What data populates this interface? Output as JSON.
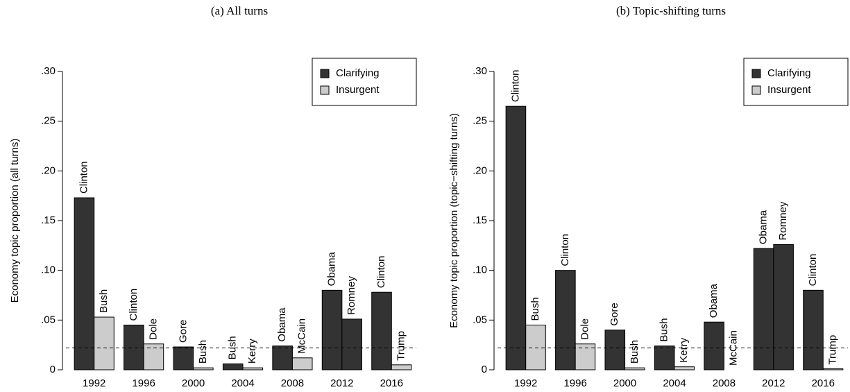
{
  "chart_data": [
    {
      "type": "bar",
      "title": "(a) All turns",
      "ylabel": "Economy topic proportion (all turns)",
      "categories": [
        "1992",
        "1996",
        "2000",
        "2004",
        "2008",
        "2012",
        "2016"
      ],
      "series": [
        {
          "labels": [
            "Clinton",
            "Clinton",
            "Gore",
            "Bush",
            "Obama",
            "Obama",
            "Clinton"
          ],
          "values": [
            0.173,
            0.045,
            0.023,
            0.006,
            0.024,
            0.08,
            0.078
          ],
          "colors": [
            "#333333",
            "#333333",
            "#333333",
            "#333333",
            "#333333",
            "#333333",
            "#333333"
          ]
        },
        {
          "labels": [
            "Bush",
            "Dole",
            "Bush",
            "Kerry",
            "McCain",
            "Romney",
            "Trump"
          ],
          "values": [
            0.053,
            0.026,
            0.002,
            0.002,
            0.012,
            0.051,
            0.005
          ],
          "colors": [
            "#cccccc",
            "#cccccc",
            "#cccccc",
            "#cccccc",
            "#cccccc",
            "#333333",
            "#cccccc"
          ]
        }
      ],
      "ylim": [
        0,
        0.3
      ],
      "yticks": [
        0,
        {
          "value": 0.05,
          "label": ".05"
        },
        {
          "value": 0.1,
          "label": ".10"
        },
        {
          "value": 0.15,
          "label": ".15"
        },
        {
          "value": 0.2,
          "label": ".20"
        },
        {
          "value": 0.25,
          "label": ".25"
        },
        {
          "value": 0.3,
          "label": ".30"
        }
      ],
      "reference_line": 0.022,
      "legend": {
        "position": "top-right",
        "entries": [
          {
            "name": "Clarifying",
            "color": "#333333"
          },
          {
            "name": "Insurgent",
            "color": "#cccccc"
          }
        ]
      }
    },
    {
      "type": "bar",
      "title": "(b) Topic-shifting turns",
      "ylabel": "Economy topic proportion (topic−shifting turns)",
      "categories": [
        "1992",
        "1996",
        "2000",
        "2004",
        "2008",
        "2012",
        "2016"
      ],
      "series": [
        {
          "labels": [
            "Clinton",
            "Clinton",
            "Gore",
            "Bush",
            "Obama",
            "Obama",
            "Clinton"
          ],
          "values": [
            0.265,
            0.1,
            0.04,
            0.024,
            0.048,
            0.122,
            0.08
          ],
          "colors": [
            "#333333",
            "#333333",
            "#333333",
            "#333333",
            "#333333",
            "#333333",
            "#333333"
          ]
        },
        {
          "labels": [
            "Bush",
            "Dole",
            "Bush",
            "Kerry",
            "McCain",
            "Romney",
            "Trump"
          ],
          "values": [
            0.045,
            0.026,
            0.002,
            0.003,
            0,
            0.126,
            0.001
          ],
          "colors": [
            "#cccccc",
            "#cccccc",
            "#cccccc",
            "#cccccc",
            "#cccccc",
            "#333333",
            "#cccccc"
          ]
        }
      ],
      "ylim": [
        0,
        0.3
      ],
      "yticks": [
        0,
        {
          "value": 0.05,
          "label": ".05"
        },
        {
          "value": 0.1,
          "label": ".10"
        },
        {
          "value": 0.15,
          "label": ".15"
        },
        {
          "value": 0.2,
          "label": ".20"
        },
        {
          "value": 0.25,
          "label": ".25"
        },
        {
          "value": 0.3,
          "label": ".30"
        }
      ],
      "reference_line": 0.022,
      "legend": {
        "position": "top-right",
        "entries": [
          {
            "name": "Clarifying",
            "color": "#333333"
          },
          {
            "name": "Insurgent",
            "color": "#cccccc"
          }
        ]
      }
    }
  ]
}
